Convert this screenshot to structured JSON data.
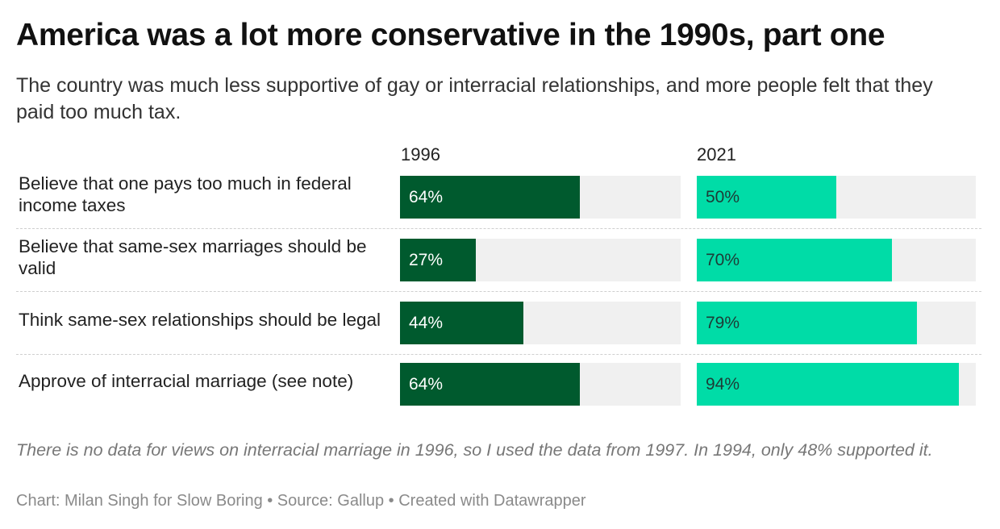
{
  "title": "America was a lot more conservative in the 1990s, part one",
  "subtitle": "The country was much less supportive of gay or interracial relationships, and more people felt that they paid too much tax.",
  "note": "There is no data for views on interracial marriage in 1996, so I used the data from 1997. In 1994, only 48% supported it.",
  "footer": "Chart: Milan Singh for Slow Boring • Source: Gallup • Created with Datawrapper",
  "colors": {
    "series_1996": "#005a2e",
    "series_2021": "#00dca7",
    "track": "#f0f0f0",
    "label_on_1996": "#ffffff",
    "label_on_2021": "#1d3b36"
  },
  "chart_data": {
    "type": "bar",
    "orientation": "horizontal",
    "layout": "split-columns",
    "categories": [
      "Believe that one pays too much in federal income taxes",
      "Believe that same-sex marriages should be valid",
      "Think same-sex relationships should be legal",
      "Approve of interracial marriage (see note)"
    ],
    "series": [
      {
        "name": "1996",
        "values": [
          64,
          27,
          44,
          64
        ],
        "labels": [
          "64%",
          "27%",
          "44%",
          "64%"
        ]
      },
      {
        "name": "2021",
        "values": [
          50,
          70,
          79,
          94
        ],
        "labels": [
          "50%",
          "70%",
          "79%",
          "94%"
        ]
      }
    ],
    "xlim": [
      0,
      100
    ],
    "unit": "%",
    "grid": false,
    "legend": "column headers"
  }
}
